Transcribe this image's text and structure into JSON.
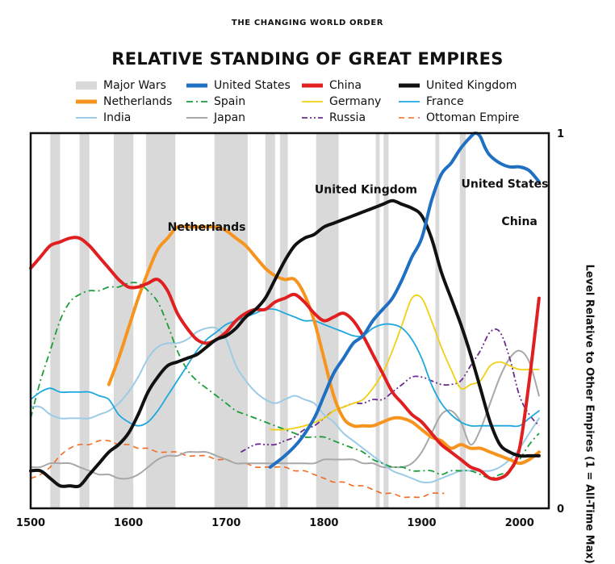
{
  "supertitle": "THE CHANGING WORLD ORDER",
  "chart_data": {
    "type": "line",
    "title": "RELATIVE STANDING OF GREAT EMPIRES",
    "xlabel": "",
    "ylabel": "Level Relative to Other Empires (1 = All-Time Max)",
    "xlim": [
      1500,
      2030
    ],
    "ylim": [
      0,
      1
    ],
    "xticks": [
      1500,
      1600,
      1700,
      1800,
      1900,
      2000
    ],
    "yticks": [
      0,
      1
    ],
    "wars_label": "Major Wars",
    "wars": [
      [
        1520,
        1530
      ],
      [
        1550,
        1560
      ],
      [
        1585,
        1605
      ],
      [
        1618,
        1648
      ],
      [
        1688,
        1722
      ],
      [
        1740,
        1750
      ],
      [
        1755,
        1763
      ],
      [
        1792,
        1815
      ],
      [
        1853,
        1857
      ],
      [
        1861,
        1866
      ],
      [
        1914,
        1918
      ],
      [
        1939,
        1945
      ]
    ],
    "annotations": [
      {
        "text": "Netherlands",
        "x": 1680,
        "y": 0.74
      },
      {
        "text": "United Kingdom",
        "x": 1843,
        "y": 0.84
      },
      {
        "text": "United States",
        "x": 1985,
        "y": 0.855
      },
      {
        "text": "China",
        "x": 2000,
        "y": 0.755
      }
    ],
    "series": [
      {
        "name": "United States",
        "color": "#1f6fc2",
        "style": "solid",
        "width": 4,
        "x": [
          1745,
          1760,
          1775,
          1790,
          1800,
          1810,
          1820,
          1830,
          1840,
          1850,
          1860,
          1870,
          1880,
          1890,
          1900,
          1910,
          1920,
          1930,
          1940,
          1950,
          1955,
          1960,
          1965,
          1970,
          1980,
          1990,
          2000,
          2010,
          2020
        ],
        "y": [
          0.11,
          0.14,
          0.18,
          0.24,
          0.3,
          0.36,
          0.4,
          0.44,
          0.46,
          0.5,
          0.53,
          0.56,
          0.61,
          0.67,
          0.72,
          0.82,
          0.89,
          0.92,
          0.96,
          0.99,
          1.0,
          0.99,
          0.96,
          0.94,
          0.92,
          0.91,
          0.91,
          0.9,
          0.87
        ]
      },
      {
        "name": "China",
        "color": "#e02020",
        "style": "solid",
        "width": 4,
        "x": [
          1500,
          1510,
          1520,
          1530,
          1540,
          1550,
          1560,
          1570,
          1580,
          1590,
          1600,
          1610,
          1620,
          1630,
          1640,
          1650,
          1660,
          1670,
          1680,
          1690,
          1700,
          1710,
          1720,
          1730,
          1740,
          1750,
          1760,
          1770,
          1780,
          1790,
          1800,
          1810,
          1820,
          1830,
          1840,
          1850,
          1860,
          1870,
          1880,
          1890,
          1900,
          1910,
          1920,
          1930,
          1940,
          1950,
          1960,
          1970,
          1980,
          1990,
          2000,
          2010,
          2020
        ],
        "y": [
          0.64,
          0.67,
          0.7,
          0.71,
          0.72,
          0.72,
          0.7,
          0.67,
          0.64,
          0.61,
          0.59,
          0.59,
          0.6,
          0.61,
          0.58,
          0.52,
          0.48,
          0.45,
          0.44,
          0.45,
          0.47,
          0.5,
          0.52,
          0.53,
          0.53,
          0.55,
          0.56,
          0.57,
          0.55,
          0.52,
          0.5,
          0.51,
          0.52,
          0.5,
          0.46,
          0.41,
          0.36,
          0.31,
          0.28,
          0.25,
          0.23,
          0.2,
          0.17,
          0.15,
          0.13,
          0.11,
          0.1,
          0.08,
          0.08,
          0.1,
          0.16,
          0.34,
          0.56
        ]
      },
      {
        "name": "United Kingdom",
        "color": "#111111",
        "style": "solid",
        "width": 4,
        "x": [
          1500,
          1510,
          1520,
          1530,
          1540,
          1550,
          1560,
          1570,
          1580,
          1590,
          1600,
          1610,
          1620,
          1630,
          1640,
          1650,
          1660,
          1670,
          1680,
          1690,
          1700,
          1710,
          1720,
          1730,
          1740,
          1750,
          1760,
          1770,
          1780,
          1790,
          1800,
          1810,
          1820,
          1830,
          1840,
          1850,
          1860,
          1870,
          1880,
          1890,
          1900,
          1910,
          1920,
          1930,
          1940,
          1950,
          1960,
          1970,
          1980,
          1990,
          2000,
          2010,
          2020
        ],
        "y": [
          0.1,
          0.1,
          0.08,
          0.06,
          0.06,
          0.06,
          0.09,
          0.12,
          0.15,
          0.17,
          0.2,
          0.25,
          0.31,
          0.35,
          0.38,
          0.39,
          0.4,
          0.41,
          0.43,
          0.45,
          0.46,
          0.48,
          0.51,
          0.53,
          0.56,
          0.61,
          0.66,
          0.7,
          0.72,
          0.73,
          0.75,
          0.76,
          0.77,
          0.78,
          0.79,
          0.8,
          0.81,
          0.82,
          0.81,
          0.8,
          0.78,
          0.72,
          0.63,
          0.56,
          0.49,
          0.41,
          0.32,
          0.23,
          0.17,
          0.15,
          0.14,
          0.14,
          0.14
        ]
      },
      {
        "name": "Netherlands",
        "color": "#f7941d",
        "style": "solid",
        "width": 4,
        "x": [
          1580,
          1590,
          1600,
          1610,
          1620,
          1630,
          1640,
          1650,
          1660,
          1670,
          1680,
          1690,
          1700,
          1710,
          1720,
          1730,
          1740,
          1750,
          1760,
          1770,
          1780,
          1790,
          1800,
          1810,
          1820,
          1830,
          1840,
          1850,
          1860,
          1870,
          1880,
          1890,
          1900,
          1910,
          1920,
          1930,
          1940,
          1950,
          1960,
          1970,
          1980,
          1990,
          2000,
          2010,
          2020
        ],
        "y": [
          0.33,
          0.4,
          0.48,
          0.56,
          0.63,
          0.69,
          0.72,
          0.75,
          0.75,
          0.75,
          0.75,
          0.75,
          0.74,
          0.72,
          0.7,
          0.67,
          0.64,
          0.62,
          0.61,
          0.61,
          0.57,
          0.5,
          0.4,
          0.3,
          0.24,
          0.22,
          0.22,
          0.22,
          0.23,
          0.24,
          0.24,
          0.23,
          0.21,
          0.19,
          0.18,
          0.16,
          0.17,
          0.16,
          0.16,
          0.15,
          0.14,
          0.13,
          0.12,
          0.13,
          0.15
        ]
      },
      {
        "name": "Spain",
        "color": "#1a9e3a",
        "style": "dashdot",
        "width": 1.8,
        "x": [
          1500,
          1510,
          1520,
          1530,
          1540,
          1550,
          1560,
          1570,
          1580,
          1590,
          1600,
          1610,
          1620,
          1630,
          1640,
          1650,
          1660,
          1670,
          1680,
          1690,
          1700,
          1710,
          1720,
          1730,
          1740,
          1750,
          1760,
          1770,
          1780,
          1790,
          1800,
          1810,
          1820,
          1830,
          1840,
          1850,
          1860,
          1870,
          1880,
          1890,
          1900,
          1910,
          1920,
          1930,
          1940,
          1950,
          1960,
          1970,
          1980,
          1990,
          2000,
          2010,
          2020
        ],
        "y": [
          0.24,
          0.34,
          0.42,
          0.5,
          0.55,
          0.57,
          0.58,
          0.58,
          0.59,
          0.59,
          0.6,
          0.6,
          0.58,
          0.55,
          0.49,
          0.42,
          0.37,
          0.34,
          0.32,
          0.3,
          0.28,
          0.26,
          0.25,
          0.24,
          0.23,
          0.22,
          0.21,
          0.2,
          0.19,
          0.19,
          0.19,
          0.18,
          0.17,
          0.16,
          0.15,
          0.13,
          0.12,
          0.11,
          0.11,
          0.1,
          0.1,
          0.1,
          0.09,
          0.1,
          0.1,
          0.1,
          0.09,
          0.08,
          0.09,
          0.1,
          0.13,
          0.17,
          0.2
        ]
      },
      {
        "name": "Germany",
        "color": "#f1d012",
        "style": "solid",
        "width": 1.8,
        "x": [
          1745,
          1760,
          1780,
          1800,
          1810,
          1820,
          1830,
          1840,
          1850,
          1860,
          1870,
          1880,
          1890,
          1900,
          1910,
          1920,
          1930,
          1940,
          1950,
          1960,
          1970,
          1980,
          1990,
          2000,
          2010,
          2020
        ],
        "y": [
          0.21,
          0.21,
          0.22,
          0.24,
          0.26,
          0.27,
          0.28,
          0.29,
          0.32,
          0.36,
          0.42,
          0.49,
          0.56,
          0.56,
          0.5,
          0.43,
          0.37,
          0.32,
          0.33,
          0.34,
          0.38,
          0.39,
          0.38,
          0.37,
          0.37,
          0.37
        ]
      },
      {
        "name": "France",
        "color": "#1fa8e0",
        "style": "solid",
        "width": 1.8,
        "x": [
          1500,
          1510,
          1520,
          1530,
          1540,
          1550,
          1560,
          1570,
          1580,
          1590,
          1600,
          1610,
          1620,
          1630,
          1640,
          1650,
          1660,
          1670,
          1680,
          1690,
          1700,
          1710,
          1720,
          1730,
          1740,
          1750,
          1760,
          1770,
          1780,
          1790,
          1800,
          1810,
          1820,
          1830,
          1840,
          1850,
          1860,
          1870,
          1880,
          1890,
          1900,
          1910,
          1920,
          1930,
          1940,
          1950,
          1960,
          1970,
          1980,
          1990,
          2000,
          2010,
          2020
        ],
        "y": [
          0.29,
          0.31,
          0.32,
          0.31,
          0.31,
          0.31,
          0.31,
          0.3,
          0.29,
          0.25,
          0.23,
          0.22,
          0.23,
          0.26,
          0.3,
          0.34,
          0.38,
          0.42,
          0.45,
          0.47,
          0.49,
          0.5,
          0.51,
          0.52,
          0.53,
          0.53,
          0.52,
          0.51,
          0.5,
          0.5,
          0.49,
          0.48,
          0.47,
          0.46,
          0.46,
          0.48,
          0.49,
          0.49,
          0.48,
          0.45,
          0.4,
          0.33,
          0.28,
          0.25,
          0.23,
          0.22,
          0.22,
          0.22,
          0.22,
          0.22,
          0.22,
          0.24,
          0.26
        ]
      },
      {
        "name": "India",
        "color": "#9ccbe6",
        "style": "solid",
        "width": 2,
        "x": [
          1500,
          1510,
          1520,
          1530,
          1540,
          1550,
          1560,
          1570,
          1580,
          1590,
          1600,
          1610,
          1620,
          1630,
          1640,
          1650,
          1660,
          1670,
          1680,
          1690,
          1700,
          1710,
          1720,
          1730,
          1740,
          1750,
          1760,
          1770,
          1780,
          1790,
          1800,
          1810,
          1820,
          1830,
          1840,
          1850,
          1860,
          1870,
          1880,
          1890,
          1900,
          1910,
          1920,
          1930,
          1940,
          1950,
          1960,
          1970,
          1980,
          1990,
          2000,
          2010,
          2020
        ],
        "y": [
          0.27,
          0.27,
          0.25,
          0.24,
          0.24,
          0.24,
          0.24,
          0.25,
          0.26,
          0.28,
          0.31,
          0.35,
          0.4,
          0.43,
          0.44,
          0.44,
          0.45,
          0.47,
          0.48,
          0.48,
          0.45,
          0.38,
          0.34,
          0.31,
          0.29,
          0.28,
          0.29,
          0.3,
          0.29,
          0.28,
          0.25,
          0.23,
          0.2,
          0.18,
          0.16,
          0.14,
          0.12,
          0.1,
          0.09,
          0.08,
          0.07,
          0.07,
          0.08,
          0.09,
          0.1,
          0.1,
          0.1,
          0.1,
          0.11,
          0.13,
          0.16,
          0.2,
          0.24
        ]
      },
      {
        "name": "Japan",
        "color": "#a8a8a8",
        "style": "solid",
        "width": 2,
        "x": [
          1500,
          1510,
          1520,
          1530,
          1540,
          1550,
          1560,
          1570,
          1580,
          1590,
          1600,
          1610,
          1620,
          1630,
          1640,
          1650,
          1660,
          1670,
          1680,
          1690,
          1700,
          1710,
          1720,
          1730,
          1740,
          1750,
          1760,
          1770,
          1780,
          1790,
          1800,
          1810,
          1820,
          1830,
          1840,
          1850,
          1860,
          1870,
          1880,
          1890,
          1900,
          1910,
          1920,
          1930,
          1940,
          1950,
          1960,
          1970,
          1980,
          1990,
          2000,
          2010,
          2020
        ],
        "y": [
          0.11,
          0.11,
          0.12,
          0.12,
          0.12,
          0.11,
          0.1,
          0.09,
          0.09,
          0.08,
          0.08,
          0.09,
          0.11,
          0.13,
          0.14,
          0.14,
          0.15,
          0.15,
          0.15,
          0.14,
          0.13,
          0.12,
          0.12,
          0.12,
          0.12,
          0.12,
          0.12,
          0.12,
          0.12,
          0.12,
          0.13,
          0.13,
          0.13,
          0.13,
          0.12,
          0.12,
          0.11,
          0.11,
          0.11,
          0.12,
          0.15,
          0.2,
          0.25,
          0.26,
          0.23,
          0.17,
          0.21,
          0.28,
          0.35,
          0.4,
          0.42,
          0.39,
          0.3
        ]
      },
      {
        "name": "Russia",
        "color": "#6a2c8e",
        "style": "dashdotdot",
        "width": 1.8,
        "x": [
          1715,
          1730,
          1740,
          1750,
          1760,
          1770,
          1780,
          1790,
          1800,
          1810,
          1820,
          1830,
          1840,
          1850,
          1860,
          1870,
          1880,
          1890,
          1900,
          1910,
          1920,
          1930,
          1940,
          1950,
          1960,
          1970,
          1980,
          1990,
          2000,
          2010,
          2020
        ],
        "y": [
          0.15,
          0.17,
          0.17,
          0.17,
          0.18,
          0.19,
          0.21,
          0.22,
          0.24,
          0.26,
          0.27,
          0.28,
          0.28,
          0.29,
          0.29,
          0.31,
          0.33,
          0.35,
          0.35,
          0.34,
          0.33,
          0.33,
          0.34,
          0.38,
          0.42,
          0.47,
          0.47,
          0.4,
          0.3,
          0.25,
          0.22
        ]
      },
      {
        "name": "Ottoman Empire",
        "color": "#f26b21",
        "style": "dashed",
        "width": 1.6,
        "x": [
          1500,
          1510,
          1520,
          1530,
          1540,
          1550,
          1560,
          1570,
          1580,
          1590,
          1600,
          1610,
          1620,
          1630,
          1640,
          1650,
          1660,
          1670,
          1680,
          1690,
          1700,
          1710,
          1720,
          1730,
          1740,
          1750,
          1760,
          1770,
          1780,
          1790,
          1800,
          1810,
          1820,
          1830,
          1840,
          1850,
          1860,
          1870,
          1880,
          1890,
          1900,
          1910,
          1920,
          1923
        ],
        "y": [
          0.08,
          0.09,
          0.11,
          0.14,
          0.16,
          0.17,
          0.17,
          0.18,
          0.18,
          0.17,
          0.17,
          0.16,
          0.16,
          0.15,
          0.15,
          0.15,
          0.14,
          0.14,
          0.14,
          0.13,
          0.13,
          0.12,
          0.12,
          0.11,
          0.11,
          0.11,
          0.11,
          0.1,
          0.1,
          0.09,
          0.08,
          0.07,
          0.07,
          0.06,
          0.06,
          0.05,
          0.04,
          0.04,
          0.03,
          0.03,
          0.03,
          0.04,
          0.04,
          0.04
        ]
      }
    ]
  }
}
